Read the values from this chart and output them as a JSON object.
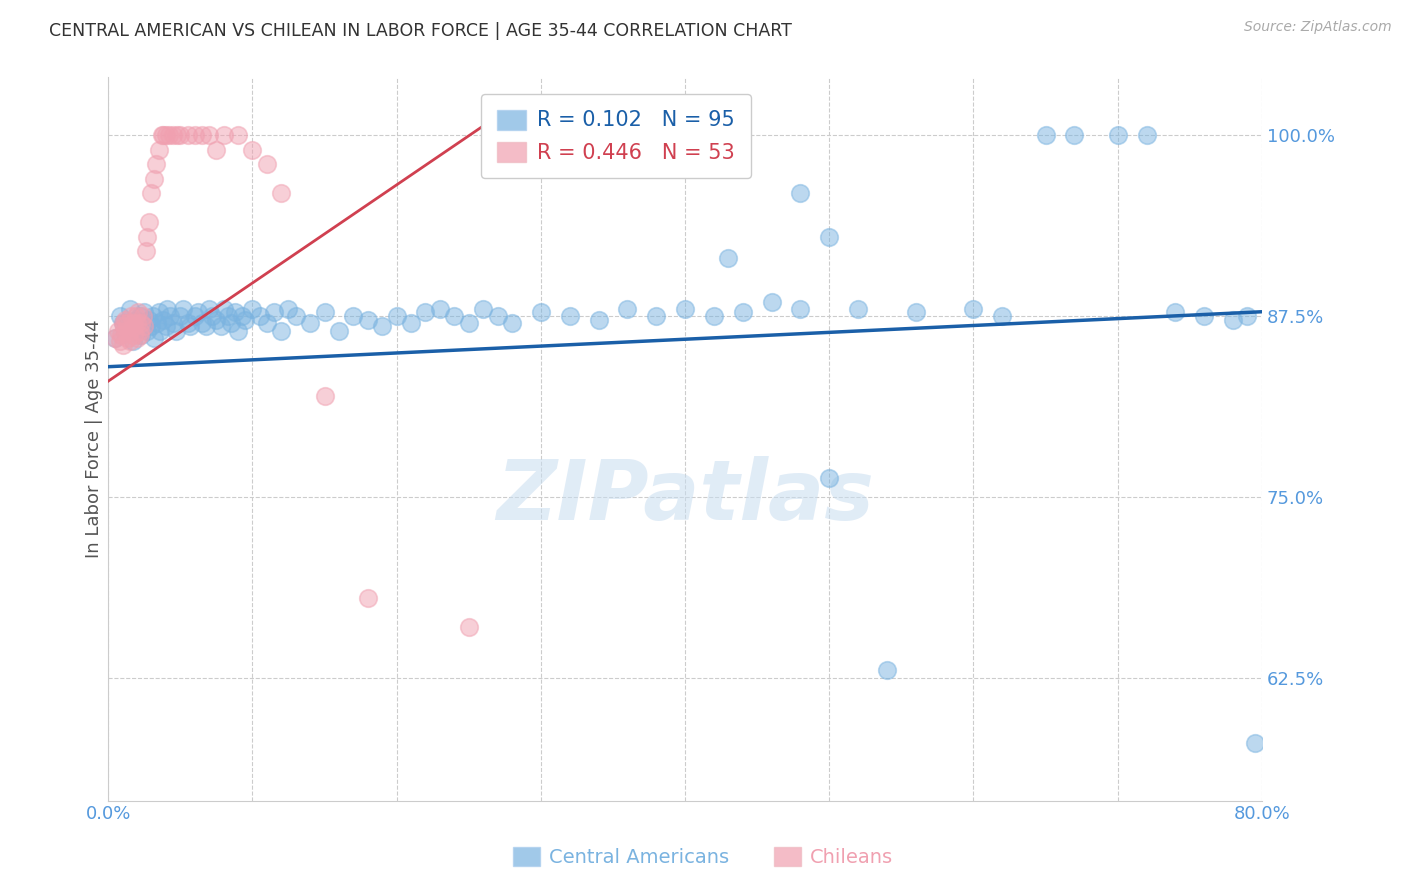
{
  "title": "CENTRAL AMERICAN VS CHILEAN IN LABOR FORCE | AGE 35-44 CORRELATION CHART",
  "source": "Source: ZipAtlas.com",
  "ylabel": "In Labor Force | Age 35-44",
  "xlim": [
    0.0,
    0.8
  ],
  "ylim": [
    0.54,
    1.04
  ],
  "xticks": [
    0.0,
    0.1,
    0.2,
    0.3,
    0.4,
    0.5,
    0.6,
    0.7,
    0.8
  ],
  "xticklabels": [
    "0.0%",
    "",
    "",
    "",
    "",
    "",
    "",
    "",
    "80.0%"
  ],
  "yticks": [
    0.625,
    0.75,
    0.875,
    1.0
  ],
  "yticklabels": [
    "62.5%",
    "75.0%",
    "87.5%",
    "100.0%"
  ],
  "blue_color": "#7ab3e0",
  "pink_color": "#f0a0b0",
  "blue_line_color": "#1a5fa8",
  "pink_line_color": "#d04050",
  "R_blue": 0.102,
  "N_blue": 95,
  "R_pink": 0.446,
  "N_pink": 53,
  "watermark": "ZIPatlas",
  "background_color": "#ffffff",
  "blue_x": [
    0.005,
    0.008,
    0.01,
    0.012,
    0.015,
    0.017,
    0.019,
    0.02,
    0.021,
    0.022,
    0.023,
    0.025,
    0.027,
    0.028,
    0.03,
    0.031,
    0.032,
    0.034,
    0.035,
    0.036,
    0.038,
    0.04,
    0.041,
    0.043,
    0.045,
    0.047,
    0.05,
    0.052,
    0.055,
    0.057,
    0.06,
    0.062,
    0.065,
    0.068,
    0.07,
    0.072,
    0.075,
    0.078,
    0.08,
    0.083,
    0.085,
    0.088,
    0.09,
    0.093,
    0.095,
    0.1,
    0.105,
    0.11,
    0.115,
    0.12,
    0.125,
    0.13,
    0.14,
    0.15,
    0.16,
    0.17,
    0.18,
    0.19,
    0.2,
    0.21,
    0.22,
    0.23,
    0.24,
    0.25,
    0.26,
    0.27,
    0.28,
    0.3,
    0.32,
    0.34,
    0.36,
    0.38,
    0.4,
    0.42,
    0.44,
    0.46,
    0.48,
    0.5,
    0.52,
    0.54,
    0.56,
    0.6,
    0.62,
    0.65,
    0.67,
    0.7,
    0.72,
    0.74,
    0.76,
    0.78,
    0.79,
    0.795,
    0.43,
    0.48,
    0.5
  ],
  "blue_y": [
    0.86,
    0.875,
    0.87,
    0.865,
    0.88,
    0.858,
    0.872,
    0.865,
    0.87,
    0.875,
    0.862,
    0.878,
    0.865,
    0.872,
    0.868,
    0.875,
    0.86,
    0.87,
    0.878,
    0.865,
    0.872,
    0.868,
    0.88,
    0.875,
    0.87,
    0.865,
    0.875,
    0.88,
    0.87,
    0.868,
    0.875,
    0.878,
    0.87,
    0.868,
    0.88,
    0.875,
    0.872,
    0.868,
    0.88,
    0.875,
    0.87,
    0.878,
    0.865,
    0.875,
    0.872,
    0.88,
    0.875,
    0.87,
    0.878,
    0.865,
    0.88,
    0.875,
    0.87,
    0.878,
    0.865,
    0.875,
    0.872,
    0.868,
    0.875,
    0.87,
    0.878,
    0.88,
    0.875,
    0.87,
    0.88,
    0.875,
    0.87,
    0.878,
    0.875,
    0.872,
    0.88,
    0.875,
    0.88,
    0.875,
    0.878,
    0.885,
    0.88,
    0.763,
    0.88,
    0.63,
    0.878,
    0.88,
    0.875,
    1.0,
    1.0,
    1.0,
    1.0,
    0.878,
    0.875,
    0.872,
    0.875,
    0.58,
    0.915,
    0.96,
    0.93
  ],
  "pink_x": [
    0.005,
    0.007,
    0.008,
    0.009,
    0.01,
    0.01,
    0.011,
    0.012,
    0.012,
    0.013,
    0.014,
    0.015,
    0.015,
    0.016,
    0.017,
    0.018,
    0.018,
    0.019,
    0.02,
    0.02,
    0.021,
    0.022,
    0.022,
    0.023,
    0.024,
    0.025,
    0.026,
    0.027,
    0.028,
    0.03,
    0.032,
    0.033,
    0.035,
    0.037,
    0.038,
    0.04,
    0.042,
    0.045,
    0.048,
    0.05,
    0.055,
    0.06,
    0.065,
    0.07,
    0.075,
    0.08,
    0.09,
    0.1,
    0.11,
    0.12,
    0.15,
    0.18,
    0.25
  ],
  "pink_y": [
    0.86,
    0.865,
    0.858,
    0.862,
    0.87,
    0.855,
    0.868,
    0.872,
    0.865,
    0.87,
    0.86,
    0.858,
    0.865,
    0.875,
    0.87,
    0.862,
    0.868,
    0.875,
    0.86,
    0.87,
    0.878,
    0.865,
    0.862,
    0.87,
    0.875,
    0.868,
    0.92,
    0.93,
    0.94,
    0.96,
    0.97,
    0.98,
    0.99,
    1.0,
    1.0,
    1.0,
    1.0,
    1.0,
    1.0,
    1.0,
    1.0,
    1.0,
    1.0,
    1.0,
    0.99,
    1.0,
    1.0,
    0.99,
    0.98,
    0.96,
    0.82,
    0.68,
    0.66
  ],
  "blue_trend": [
    0.84,
    0.878
  ],
  "pink_trend_x": [
    0.0,
    0.28
  ],
  "pink_trend_y": [
    0.83,
    1.02
  ]
}
